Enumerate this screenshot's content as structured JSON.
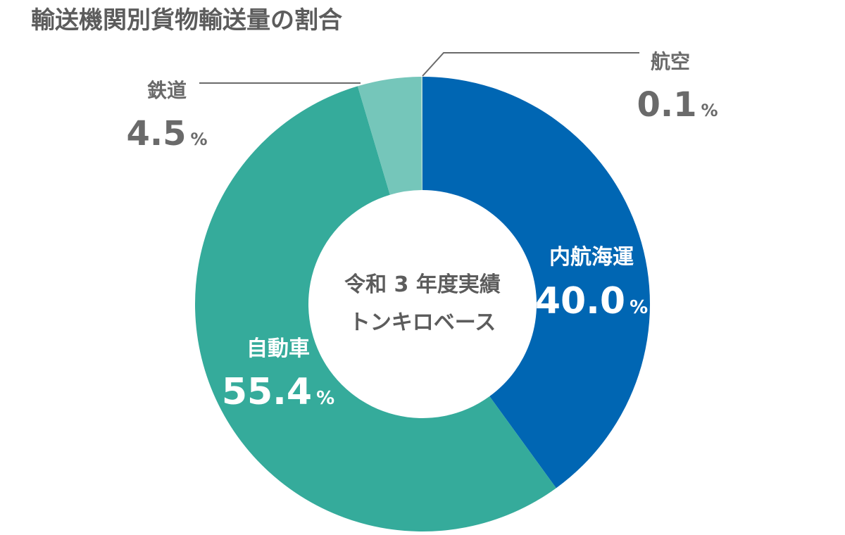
{
  "chart_data": {
    "type": "pie",
    "title": "輸送機関別貨物輸送量の割合",
    "center_label": [
      "令和 3 年度実績",
      "トンキロベース"
    ],
    "unit": "%",
    "slices": [
      {
        "name": "内航海運",
        "value": 40.0,
        "value_text": "40.0",
        "color": "#0066b3"
      },
      {
        "name": "自動車",
        "value": 55.4,
        "value_text": "55.4",
        "color": "#35ab9b"
      },
      {
        "name": "鉄道",
        "value": 4.5,
        "value_text": "4.5",
        "color": "#75c6ba"
      },
      {
        "name": "航空",
        "value": 0.1,
        "value_text": "0.1",
        "color": "#a9d8d1"
      }
    ],
    "label_colors": {
      "inside": "#ffffff",
      "outside": "#6a6a6a"
    }
  }
}
